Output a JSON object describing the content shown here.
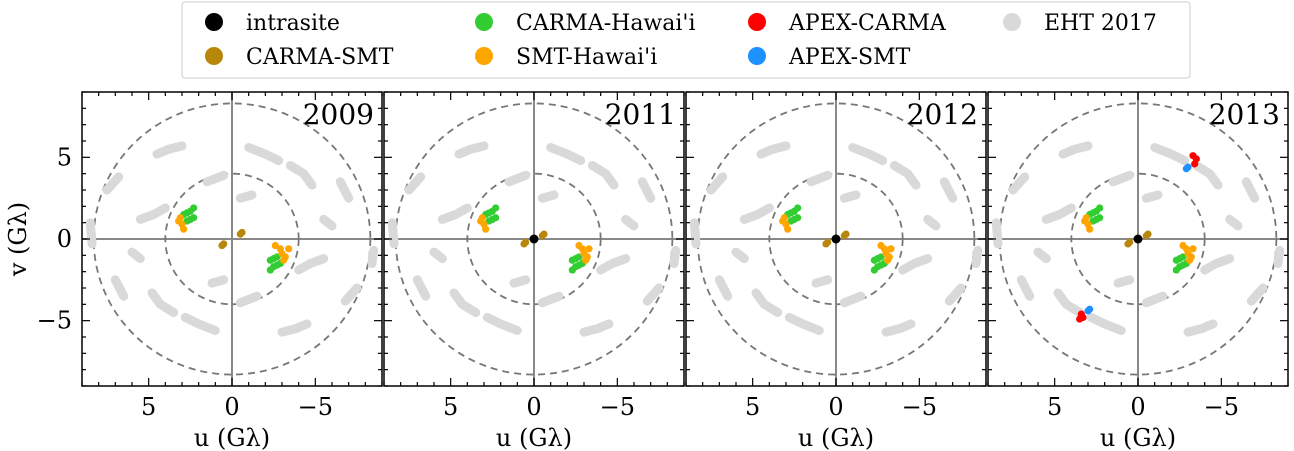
{
  "colors": {
    "intrasite": "#000000",
    "CARMA-SMT": "#b8860b",
    "CARMA-Hawai'i": "#32cd32",
    "SMT-Hawai'i": "#ffa500",
    "APEX-CARMA": "#ff0000",
    "APEX-SMT": "#1e90ff",
    "EHT 2017": "#d9d9d9",
    "guide": "#777777",
    "axis": "#888888"
  },
  "legend": {
    "entries": [
      {
        "label": "intrasite",
        "color": "#000000"
      },
      {
        "label": "CARMA-SMT",
        "color": "#b8860b"
      },
      {
        "label": "CARMA-Hawai'i",
        "color": "#32cd32"
      },
      {
        "label": "SMT-Hawai'i",
        "color": "#ffa500"
      },
      {
        "label": "APEX-CARMA",
        "color": "#ff0000"
      },
      {
        "label": "APEX-SMT",
        "color": "#1e90ff"
      },
      {
        "label": "EHT 2017",
        "color": "#d9d9d9"
      }
    ],
    "placement": "top-center"
  },
  "chart_data": [
    {
      "type": "scatter",
      "title": "2009",
      "xlabel": "u (Gλ)",
      "ylabel": "v (Gλ)",
      "xlim": [
        9,
        -9
      ],
      "ylim": [
        -9,
        9
      ],
      "xticks": [
        "5",
        "0",
        "−5"
      ],
      "yticks": [
        "5",
        "0",
        "−5"
      ],
      "reference_circles": [
        4,
        8.3
      ],
      "series": [
        {
          "name": "EHT 2017",
          "tracks": "eht"
        },
        {
          "name": "CARMA-Hawai'i",
          "points": [
            [
              2.9,
              1.5
            ],
            [
              2.7,
              1.6
            ],
            [
              2.5,
              1.7
            ],
            [
              2.3,
              1.9
            ],
            [
              2.7,
              1.1
            ],
            [
              2.5,
              1.2
            ],
            [
              2.3,
              1.3
            ],
            [
              -2.9,
              -1.5
            ],
            [
              -2.7,
              -1.6
            ],
            [
              -2.5,
              -1.7
            ],
            [
              -2.3,
              -1.9
            ],
            [
              -2.7,
              -1.1
            ],
            [
              -2.5,
              -1.2
            ],
            [
              -2.3,
              -1.3
            ]
          ]
        },
        {
          "name": "SMT-Hawai'i",
          "points": [
            [
              3.1,
              1.3
            ],
            [
              3.0,
              0.9
            ],
            [
              2.9,
              0.6
            ],
            [
              3.2,
              1.1
            ],
            [
              -3.1,
              -1.3
            ],
            [
              -3.0,
              -0.9
            ],
            [
              -2.9,
              -0.6
            ],
            [
              -3.2,
              -1.1
            ],
            [
              -3.4,
              -0.6
            ],
            [
              -2.6,
              -0.4
            ]
          ]
        },
        {
          "name": "CARMA-SMT",
          "points": [
            [
              0.6,
              -0.4
            ],
            [
              0.5,
              -0.3
            ],
            [
              -0.6,
              0.4
            ],
            [
              -0.5,
              0.3
            ]
          ]
        }
      ]
    },
    {
      "type": "scatter",
      "title": "2011",
      "xlabel": "u (Gλ)",
      "xlim": [
        9,
        -9
      ],
      "ylim": [
        -9,
        9
      ],
      "xticks": [
        "5",
        "0",
        "−5"
      ],
      "reference_circles": [
        4,
        8.3
      ],
      "series": [
        {
          "name": "EHT 2017",
          "tracks": "eht"
        },
        {
          "name": "CARMA-Hawai'i",
          "points": [
            [
              2.9,
              1.5
            ],
            [
              2.7,
              1.6
            ],
            [
              2.5,
              1.7
            ],
            [
              2.3,
              1.9
            ],
            [
              2.7,
              1.1
            ],
            [
              2.5,
              1.2
            ],
            [
              2.3,
              1.3
            ],
            [
              -2.9,
              -1.5
            ],
            [
              -2.7,
              -1.6
            ],
            [
              -2.5,
              -1.7
            ],
            [
              -2.3,
              -1.9
            ],
            [
              -2.7,
              -1.1
            ],
            [
              -2.5,
              -1.2
            ],
            [
              -2.3,
              -1.3
            ]
          ]
        },
        {
          "name": "SMT-Hawai'i",
          "points": [
            [
              3.1,
              1.3
            ],
            [
              3.0,
              0.9
            ],
            [
              2.9,
              0.6
            ],
            [
              3.2,
              1.1
            ],
            [
              -3.1,
              -1.3
            ],
            [
              -3.0,
              -0.9
            ],
            [
              -2.9,
              -0.6
            ],
            [
              -3.2,
              -1.1
            ],
            [
              -3.3,
              -0.6
            ],
            [
              -2.7,
              -0.4
            ]
          ]
        },
        {
          "name": "CARMA-SMT",
          "points": [
            [
              0.6,
              -0.3
            ],
            [
              0.5,
              -0.2
            ],
            [
              -0.6,
              0.3
            ],
            [
              -0.5,
              0.2
            ]
          ]
        },
        {
          "name": "intrasite",
          "points": [
            [
              0,
              0
            ]
          ]
        }
      ]
    },
    {
      "type": "scatter",
      "title": "2012",
      "xlabel": "u (Gλ)",
      "xlim": [
        9,
        -9
      ],
      "ylim": [
        -9,
        9
      ],
      "xticks": [
        "5",
        "0",
        "−5"
      ],
      "reference_circles": [
        4,
        8.3
      ],
      "series": [
        {
          "name": "EHT 2017",
          "tracks": "eht"
        },
        {
          "name": "CARMA-Hawai'i",
          "points": [
            [
              2.9,
              1.5
            ],
            [
              2.7,
              1.6
            ],
            [
              2.5,
              1.7
            ],
            [
              2.3,
              1.9
            ],
            [
              2.7,
              1.1
            ],
            [
              2.5,
              1.2
            ],
            [
              2.3,
              1.3
            ],
            [
              -2.9,
              -1.5
            ],
            [
              -2.7,
              -1.6
            ],
            [
              -2.5,
              -1.7
            ],
            [
              -2.3,
              -1.9
            ],
            [
              -2.7,
              -1.1
            ],
            [
              -2.5,
              -1.2
            ],
            [
              -2.3,
              -1.3
            ]
          ]
        },
        {
          "name": "SMT-Hawai'i",
          "points": [
            [
              3.1,
              1.3
            ],
            [
              3.0,
              0.9
            ],
            [
              2.9,
              0.6
            ],
            [
              3.2,
              1.1
            ],
            [
              -3.1,
              -1.3
            ],
            [
              -3.0,
              -0.9
            ],
            [
              -2.9,
              -0.6
            ],
            [
              -3.2,
              -1.1
            ],
            [
              -3.3,
              -0.6
            ],
            [
              -2.7,
              -0.4
            ]
          ]
        },
        {
          "name": "CARMA-SMT",
          "points": [
            [
              0.6,
              -0.3
            ],
            [
              0.5,
              -0.2
            ],
            [
              -0.6,
              0.3
            ],
            [
              -0.5,
              0.2
            ]
          ]
        },
        {
          "name": "intrasite",
          "points": [
            [
              0,
              0
            ]
          ]
        }
      ]
    },
    {
      "type": "scatter",
      "title": "2013",
      "xlabel": "u (Gλ)",
      "xlim": [
        9,
        -9
      ],
      "ylim": [
        -9,
        9
      ],
      "xticks": [
        "5",
        "0",
        "−5"
      ],
      "reference_circles": [
        4,
        8.3
      ],
      "series": [
        {
          "name": "EHT 2017",
          "tracks": "eht"
        },
        {
          "name": "CARMA-Hawai'i",
          "points": [
            [
              2.9,
              1.5
            ],
            [
              2.7,
              1.6
            ],
            [
              2.5,
              1.7
            ],
            [
              2.3,
              1.9
            ],
            [
              2.7,
              1.1
            ],
            [
              2.5,
              1.2
            ],
            [
              2.3,
              1.3
            ],
            [
              -2.9,
              -1.5
            ],
            [
              -2.7,
              -1.6
            ],
            [
              -2.5,
              -1.7
            ],
            [
              -2.3,
              -1.9
            ],
            [
              -2.7,
              -1.1
            ],
            [
              -2.5,
              -1.2
            ],
            [
              -2.3,
              -1.3
            ]
          ]
        },
        {
          "name": "SMT-Hawai'i",
          "points": [
            [
              3.1,
              1.3
            ],
            [
              3.0,
              0.9
            ],
            [
              2.9,
              0.6
            ],
            [
              3.2,
              1.1
            ],
            [
              -3.1,
              -1.3
            ],
            [
              -3.0,
              -0.9
            ],
            [
              -2.9,
              -0.6
            ],
            [
              -3.2,
              -1.1
            ],
            [
              -3.3,
              -0.6
            ],
            [
              -2.7,
              -0.4
            ]
          ]
        },
        {
          "name": "CARMA-SMT",
          "points": [
            [
              0.6,
              -0.3
            ],
            [
              0.5,
              -0.2
            ],
            [
              -0.6,
              0.3
            ],
            [
              -0.5,
              0.2
            ]
          ]
        },
        {
          "name": "intrasite",
          "points": [
            [
              0,
              0
            ]
          ]
        },
        {
          "name": "APEX-CARMA",
          "points": [
            [
              -3.4,
              4.6
            ],
            [
              -3.5,
              4.9
            ],
            [
              -3.3,
              5.1
            ],
            [
              3.4,
              -4.6
            ],
            [
              3.5,
              -4.9
            ],
            [
              3.3,
              -4.8
            ]
          ]
        },
        {
          "name": "APEX-SMT",
          "points": [
            [
              -2.9,
              4.3
            ],
            [
              -3.0,
              4.4
            ],
            [
              2.9,
              -4.3
            ],
            [
              3.0,
              -4.4
            ]
          ]
        }
      ]
    }
  ],
  "eht_tracks": [
    [
      [
        4.5,
        5.2
      ],
      [
        3.8,
        5.5
      ],
      [
        3.0,
        5.7
      ]
    ],
    [
      [
        -1.0,
        5.6
      ],
      [
        -2.0,
        5.2
      ],
      [
        -2.8,
        4.8
      ]
    ],
    [
      [
        -3.5,
        4.5
      ],
      [
        -4.3,
        4.0
      ],
      [
        -4.8,
        3.3
      ]
    ],
    [
      [
        -6.5,
        3.5
      ],
      [
        -7.0,
        2.5
      ]
    ],
    [
      [
        7.5,
        3.0
      ],
      [
        6.8,
        3.8
      ]
    ],
    [
      [
        8.5,
        1.0
      ],
      [
        8.4,
        -0.3
      ]
    ],
    [
      [
        5.5,
        1.2
      ],
      [
        4.7,
        1.5
      ],
      [
        4.0,
        1.9
      ]
    ],
    [
      [
        -5.5,
        1.2
      ],
      [
        -6.0,
        0.8
      ]
    ],
    [
      [
        -8.5,
        -0.7
      ],
      [
        -8.4,
        -1.5
      ]
    ],
    [
      [
        -4.5,
        -5.2
      ],
      [
        -3.8,
        -5.5
      ],
      [
        -3.0,
        -5.7
      ]
    ],
    [
      [
        1.0,
        -5.6
      ],
      [
        2.0,
        -5.2
      ],
      [
        2.8,
        -4.8
      ]
    ],
    [
      [
        3.5,
        -4.5
      ],
      [
        4.3,
        -4.0
      ],
      [
        4.8,
        -3.3
      ]
    ],
    [
      [
        6.5,
        -3.5
      ],
      [
        7.0,
        -2.5
      ]
    ],
    [
      [
        -7.5,
        -3.0
      ],
      [
        -6.8,
        -3.8
      ]
    ],
    [
      [
        -5.5,
        -1.2
      ],
      [
        -4.7,
        -1.5
      ],
      [
        -4.0,
        -1.9
      ]
    ],
    [
      [
        5.5,
        -1.2
      ],
      [
        6.0,
        -0.8
      ]
    ],
    [
      [
        1.5,
        3.5
      ],
      [
        0.5,
        3.9
      ]
    ],
    [
      [
        -1.5,
        -3.5
      ],
      [
        -0.5,
        -3.9
      ]
    ],
    [
      [
        -0.5,
        2.5
      ],
      [
        -1.2,
        2.7
      ]
    ],
    [
      [
        0.5,
        -2.5
      ],
      [
        1.2,
        -2.7
      ]
    ]
  ]
}
